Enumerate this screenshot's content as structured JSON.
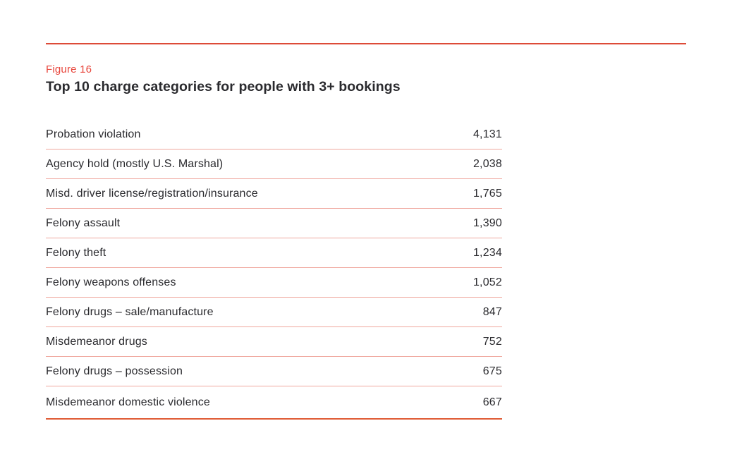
{
  "figure": {
    "label": "Figure 16",
    "title": "Top 10 charge categories for people with 3+ bookings"
  },
  "colors": {
    "accent_red": "#dd4b38",
    "figure_label_red": "#e8463c",
    "row_divider_pink": "#efa79e",
    "bottom_rule_orange": "#df5b35",
    "text": "#2a2a2e",
    "background": "#ffffff"
  },
  "chart_data": {
    "type": "table",
    "title": "Top 10 charge categories for people with 3+ bookings",
    "figure_label": "Figure 16",
    "categories": [
      "Probation violation",
      "Agency hold (mostly U.S. Marshal)",
      "Misd. driver license/registration/insurance",
      "Felony assault",
      "Felony theft",
      "Felony weapons offenses",
      "Felony drugs – sale/manufacture",
      "Misdemeanor drugs",
      "Felony drugs – possession",
      "Misdemeanor domestic violence"
    ],
    "values": [
      4131,
      2038,
      1765,
      1390,
      1234,
      1052,
      847,
      752,
      675,
      667
    ],
    "rows": [
      {
        "label": "Probation violation",
        "value": "4,131"
      },
      {
        "label": "Agency hold (mostly U.S. Marshal)",
        "value": "2,038"
      },
      {
        "label": "Misd. driver license/registration/insurance",
        "value": "1,765"
      },
      {
        "label": "Felony assault",
        "value": "1,390"
      },
      {
        "label": "Felony theft",
        "value": "1,234"
      },
      {
        "label": "Felony weapons offenses",
        "value": "1,052"
      },
      {
        "label": "Felony drugs – sale/manufacture",
        "value": "847"
      },
      {
        "label": "Misdemeanor drugs",
        "value": "752"
      },
      {
        "label": "Felony drugs – possession",
        "value": "675"
      },
      {
        "label": "Misdemeanor domestic violence",
        "value": "667"
      }
    ]
  }
}
